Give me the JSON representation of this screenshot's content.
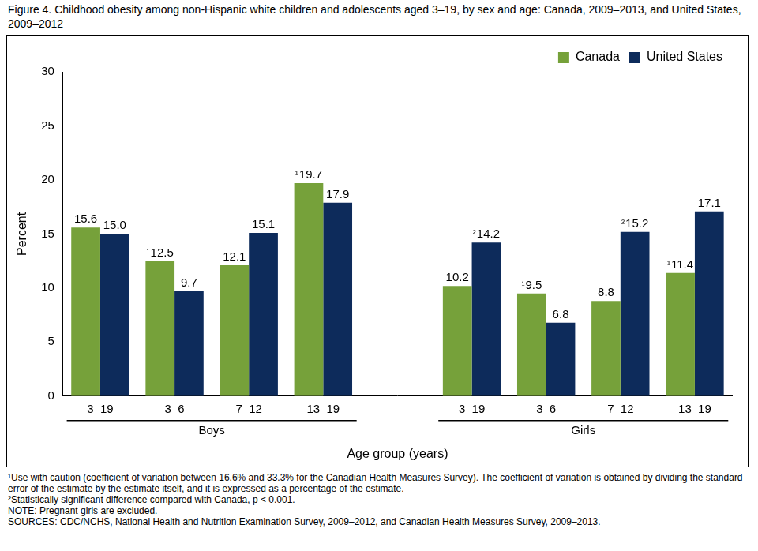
{
  "chart_data": {
    "type": "bar",
    "title": "Figure 4. Childhood obesity among non-Hispanic white children and adolescents aged 3–19, by sex and age: Canada, 2009–2013, and United States, 2009–2012",
    "notes": [
      "¹Use with caution (coefficient of variation between 16.6% and 33.3% for the Canadian Health Measures Survey). The coefficient of variation is obtained by dividing the standard error of the estimate by the estimate itself, and it is expressed as a percentage of the estimate.",
      "²Statistically significant difference compared with Canada, p < 0.001.",
      "NOTE: Pregnant girls are excluded.",
      "SOURCES:  CDC/NCHS, National Health and Nutrition Examination Survey, 2009–2012, and Canadian Health Measures Survey, 2009–2013."
    ],
    "x_label": "Age group (years)",
    "y_label": "Percent",
    "categories": [
      "3–19",
      "3–6",
      "7–12",
      "13–19",
      null,
      "3–19",
      "3–6",
      "7–12",
      "13–19"
    ],
    "category_groups": [
      "Boys",
      "Boys",
      "Boys",
      "Boys",
      null,
      "Girls",
      "Girls",
      "Girls",
      "Girls"
    ],
    "series": [
      {
        "name": "Canada",
        "color": "#76a13a",
        "values": [
          15.6,
          12.5,
          12.1,
          19.7,
          null,
          10.2,
          9.5,
          8.8,
          11.4
        ],
        "value_labels": [
          "15.6",
          "12.5",
          "12.1",
          "19.7",
          null,
          "10.2",
          "9.5",
          "8.8",
          "11.4"
        ],
        "value_marks": [
          null,
          "¹",
          null,
          "¹",
          null,
          null,
          "¹",
          null,
          "¹"
        ]
      },
      {
        "name": "United States",
        "color": "#0d2b5b",
        "values": [
          15.0,
          9.7,
          15.1,
          17.9,
          null,
          14.2,
          6.8,
          15.2,
          17.1
        ],
        "value_labels": [
          "15.0",
          "9.7",
          "15.1",
          "17.9",
          null,
          "14.2",
          "6.8",
          "15.2",
          "17.1"
        ],
        "value_marks": [
          null,
          null,
          null,
          null,
          null,
          "²",
          null,
          "²",
          null
        ]
      }
    ],
    "ylim": [
      0,
      30
    ],
    "yticks": [
      0,
      5,
      10,
      15,
      20,
      25,
      30
    ],
    "grid": false,
    "legend": "upper right",
    "data_labels": true
  }
}
